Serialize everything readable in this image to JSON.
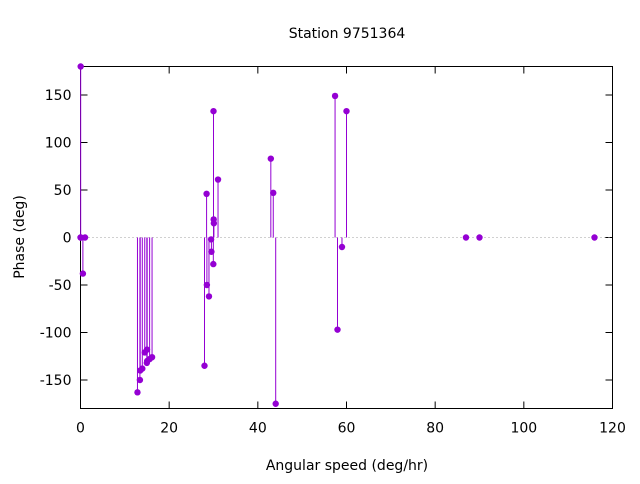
{
  "chart_data": {
    "type": "scatter",
    "style": "impulses-with-points",
    "title": "Station 9751364",
    "xlabel": "Angular speed (deg/hr)",
    "ylabel": "Phase (deg)",
    "xlim": [
      0,
      120
    ],
    "ylim": [
      -180,
      180
    ],
    "xticks": [
      0,
      20,
      40,
      60,
      80,
      100,
      120
    ],
    "yticks": [
      -150,
      -100,
      -50,
      0,
      50,
      100,
      150
    ],
    "grid": false,
    "legend": "none",
    "zero_line": "dotted",
    "colors": {
      "series": "#9400d3",
      "axis": "#000000",
      "zero_line": "#a0a0a0"
    },
    "series": [
      {
        "x": [
          0.0,
          0.04,
          0.08,
          0.54,
          1.02,
          12.85,
          13.4,
          13.47,
          13.94,
          14.49,
          14.96,
          15.0,
          15.04,
          15.59,
          16.14,
          27.97,
          28.44,
          28.51,
          28.98,
          29.46,
          29.53,
          29.96,
          30.0,
          30.04,
          30.08,
          31.02,
          42.93,
          43.48,
          44.03,
          57.42,
          57.97,
          58.98,
          60.0,
          86.95,
          90.0,
          115.94
        ],
        "y": [
          0,
          180,
          0,
          -38,
          0,
          -163,
          -150,
          -140,
          -138,
          -121,
          -132,
          -118,
          -130,
          -128,
          -126,
          -135,
          46,
          -50,
          -62,
          -2,
          -15,
          -28,
          133,
          19,
          15,
          61,
          83,
          47,
          -175,
          149,
          -97,
          -10,
          133,
          0,
          0,
          0
        ]
      }
    ]
  }
}
